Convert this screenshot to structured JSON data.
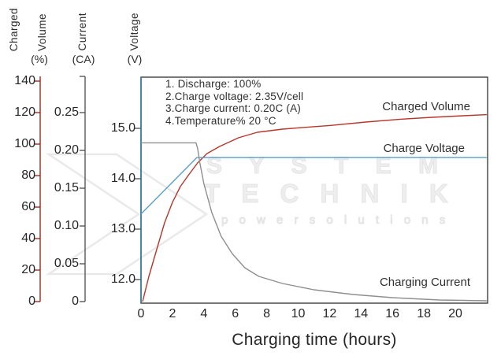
{
  "watermark": {
    "line1": "S Y S T E M",
    "line2": "T E C H N I K",
    "line3": "p o w e r   s o l u t i o n s"
  },
  "headers": {
    "charged": "Charged",
    "volume": "Volume",
    "volume_unit": "(%)",
    "current": "Current",
    "current_unit": "(CA)",
    "voltage": "Voltage",
    "voltage_unit": "(V)"
  },
  "series_labels": {
    "charged_volume": "Charged Volume",
    "charge_voltage": "Charge Voltage",
    "charging_current": "Charging Current"
  },
  "chart_data": {
    "type": "line",
    "xlabel": "Charging time (hours)",
    "x_range": [
      0,
      22
    ],
    "x_ticks": [
      0,
      2,
      4,
      6,
      8,
      10,
      12,
      14,
      16,
      18,
      20
    ],
    "grid": false,
    "annotations": [
      "1. Discharge: 100%",
      "2.Charge voltage: 2.35V/cell",
      "3.Charge current: 0.20C (A)",
      "4.Temperature% 20 °C"
    ],
    "axes": {
      "charged_volume": {
        "title": "Charged Volume (%)",
        "range": [
          0,
          140
        ],
        "ticks": [
          0,
          20,
          40,
          60,
          80,
          100,
          120,
          140
        ],
        "color": "#942d26"
      },
      "current": {
        "title": "Current (CA)",
        "range": [
          0,
          0.25
        ],
        "ticks": [
          "0",
          "0.05",
          "0.10",
          "0.15",
          "0.20",
          "0.25"
        ],
        "color": "#4c4c4c"
      },
      "voltage": {
        "title": "Voltage (V)",
        "range": [
          12,
          15
        ],
        "ticks": [
          "12.0",
          "13.0",
          "14.0",
          "15.0"
        ],
        "color": "#2a7f9e"
      }
    },
    "series": [
      {
        "name": "Charged Volume",
        "axis": "charged_volume",
        "color": "#b7362c",
        "points": [
          [
            0.1,
            0
          ],
          [
            0.5,
            16
          ],
          [
            1,
            33
          ],
          [
            1.5,
            50
          ],
          [
            2,
            63
          ],
          [
            2.5,
            73
          ],
          [
            3,
            80
          ],
          [
            3.6,
            88
          ],
          [
            4.2,
            94
          ],
          [
            5,
            98.5
          ],
          [
            6.2,
            104
          ],
          [
            7.4,
            107.5
          ],
          [
            9,
            109.5
          ],
          [
            10,
            110.3
          ],
          [
            12,
            111.8
          ],
          [
            14.3,
            114
          ],
          [
            16.5,
            115.8
          ],
          [
            18.5,
            117
          ],
          [
            20.5,
            118
          ],
          [
            22,
            118.7
          ]
        ]
      },
      {
        "name": "Charge Voltage",
        "axis": "voltage",
        "color": "#5b9ec6",
        "points": [
          [
            0,
            13.3
          ],
          [
            3.55,
            14.42
          ],
          [
            22,
            14.42
          ]
        ]
      },
      {
        "name": "Charging Current",
        "axis": "current",
        "color": "#8f8f8f",
        "points": [
          [
            0,
            0.21
          ],
          [
            3.5,
            0.21
          ],
          [
            3.6,
            0.203
          ],
          [
            3.75,
            0.183
          ],
          [
            4,
            0.156
          ],
          [
            4.5,
            0.118
          ],
          [
            5.1,
            0.0865
          ],
          [
            5.8,
            0.0635
          ],
          [
            6.6,
            0.0448
          ],
          [
            7.5,
            0.0333
          ],
          [
            9,
            0.024
          ],
          [
            11,
            0.0156
          ],
          [
            13.5,
            0.0094
          ],
          [
            16,
            0.0052
          ],
          [
            19,
            0.0021
          ],
          [
            22,
            0.001
          ]
        ]
      }
    ]
  }
}
